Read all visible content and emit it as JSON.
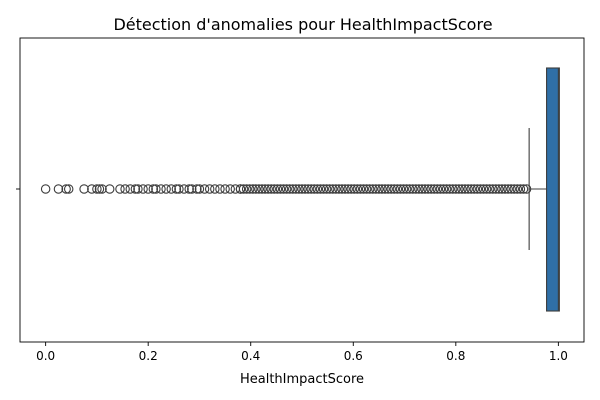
{
  "chart_data": {
    "type": "boxplot",
    "title": "Détection d'anomalies pour HealthImpactScore",
    "xlabel": "HealthImpactScore",
    "ylabel": "",
    "xlim": [
      -0.05,
      1.05
    ],
    "xticks": [
      {
        "value": 0.0,
        "label": "0.0"
      },
      {
        "value": 0.2,
        "label": "0.2"
      },
      {
        "value": 0.4,
        "label": "0.4"
      },
      {
        "value": 0.6,
        "label": "0.6"
      },
      {
        "value": 0.8,
        "label": "0.8"
      },
      {
        "value": 1.0,
        "label": "1.0"
      }
    ],
    "grid": false,
    "orientation": "horizontal",
    "box": {
      "q1": 0.977,
      "median": 1.0,
      "q3": 1.0,
      "whisker_low": 0.943,
      "whisker_high": 1.0,
      "color": "#2f6fa7",
      "edge_color": "#3d3d3d"
    },
    "outliers_sparse": [
      0.0,
      0.025,
      0.04,
      0.045,
      0.075,
      0.09,
      0.1,
      0.105,
      0.11,
      0.125,
      0.145,
      0.155,
      0.165,
      0.175,
      0.18,
      0.19,
      0.2,
      0.21,
      0.215,
      0.225,
      0.235,
      0.245,
      0.255,
      0.26,
      0.27,
      0.28,
      0.285,
      0.295,
      0.3,
      0.31,
      0.32,
      0.33,
      0.34,
      0.35,
      0.36,
      0.37,
      0.38
    ],
    "outliers_dense_range": [
      0.38,
      0.94
    ],
    "outliers_dense_step": 0.006
  }
}
